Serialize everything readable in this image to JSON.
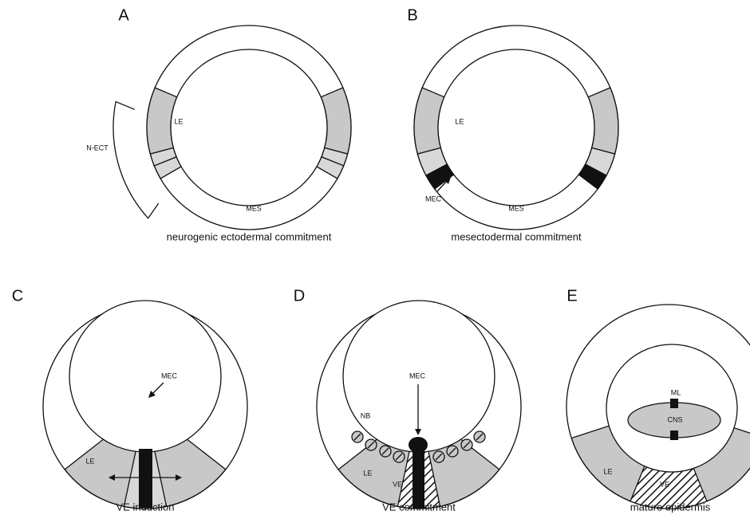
{
  "panels": [
    {
      "letter": "A",
      "caption": "neurogenic ectodermal commitment",
      "labels": [
        "LE",
        "N-ECT",
        "MES"
      ]
    },
    {
      "letter": "B",
      "caption": "mesectodermal commitment",
      "labels": [
        "LE",
        "MEC",
        "MES"
      ]
    },
    {
      "letter": "C",
      "caption": "VE induction",
      "labels": [
        "MEC",
        "LE"
      ]
    },
    {
      "letter": "D",
      "caption": "VE commitment",
      "labels": [
        "NB",
        "MEC",
        "LE",
        "VE"
      ]
    },
    {
      "letter": "E",
      "caption": "mature epidermis",
      "labels": [
        "ML",
        "CNS",
        "LE",
        "VE"
      ]
    }
  ]
}
